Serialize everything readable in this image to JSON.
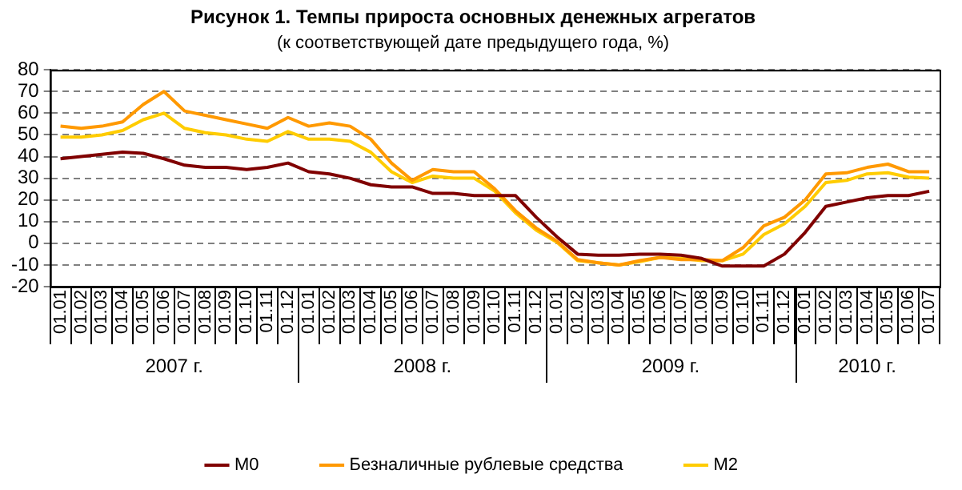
{
  "chart_data": {
    "type": "line",
    "title": "Рисунок 1. Темпы прироста основных денежных агрегатов",
    "subtitle": "(к соответствующей дате предыдущего года, %)",
    "categories": [
      "01.01",
      "01.02",
      "01.03",
      "01.04",
      "01.05",
      "01.06",
      "01.07",
      "01.08",
      "01.09",
      "01.10",
      "01.11",
      "01.12",
      "01.01",
      "01.02",
      "01.03",
      "01.04",
      "01.05",
      "01.06",
      "01.07",
      "01.08",
      "01.09",
      "01.10",
      "01.11",
      "01.12",
      "01.01",
      "01.02",
      "01.03",
      "01.04",
      "01.05",
      "01.06",
      "01.07",
      "01.08",
      "01.09",
      "01.10",
      "01.11",
      "01.12",
      "01.01",
      "01.02",
      "01.03",
      "01.04",
      "01.05",
      "01.06",
      "01.07"
    ],
    "annotations": [
      "2007 г.",
      "2008 г.",
      "2009 г.",
      "2010 г."
    ],
    "series": [
      {
        "name": "M0",
        "color": "#800000",
        "values": [
          39,
          40,
          41,
          42,
          41.5,
          39,
          36,
          35,
          35,
          34,
          35,
          37,
          33,
          32,
          30,
          27,
          26,
          26,
          23,
          23,
          22,
          22,
          22,
          12,
          3,
          -5,
          -5.5,
          -5.5,
          -5,
          -5,
          -5.5,
          -7,
          -10.5,
          -10.5,
          -10.5,
          -5,
          5,
          17,
          19,
          21,
          22,
          22,
          24
        ]
      },
      {
        "name": "Безналичные рублевые средства",
        "color": "#ff9900",
        "values": [
          54,
          53,
          54,
          56,
          64,
          70,
          61,
          59,
          57,
          55,
          53,
          58,
          54,
          55.5,
          54,
          48,
          37,
          29,
          34,
          33,
          33,
          25,
          15,
          7,
          1,
          -7.5,
          -9,
          -10,
          -8,
          -6.5,
          -7.5,
          -7.5,
          -8,
          -2,
          8,
          12,
          20,
          32,
          32.5,
          35,
          36.5,
          33,
          33
        ]
      },
      {
        "name": "M2",
        "color": "#ffcc00",
        "values": [
          49,
          49,
          50,
          52,
          57,
          60,
          53,
          51,
          50,
          48,
          47,
          51.5,
          48,
          48,
          47,
          42,
          33,
          28,
          31,
          30,
          30,
          24,
          14,
          6,
          0.5,
          -8,
          -9,
          -10,
          -8.5,
          -6.5,
          -7,
          -8,
          -8,
          -5,
          4,
          9,
          17,
          28,
          29,
          32,
          32.5,
          30.5,
          30
        ]
      }
    ],
    "ylim": [
      -20,
      80
    ],
    "yticks": [
      -20,
      -10,
      0,
      10,
      20,
      30,
      40,
      50,
      60,
      70,
      80
    ],
    "grid": "y",
    "legend": "bottom",
    "line_style": "solid",
    "marker": "none"
  }
}
